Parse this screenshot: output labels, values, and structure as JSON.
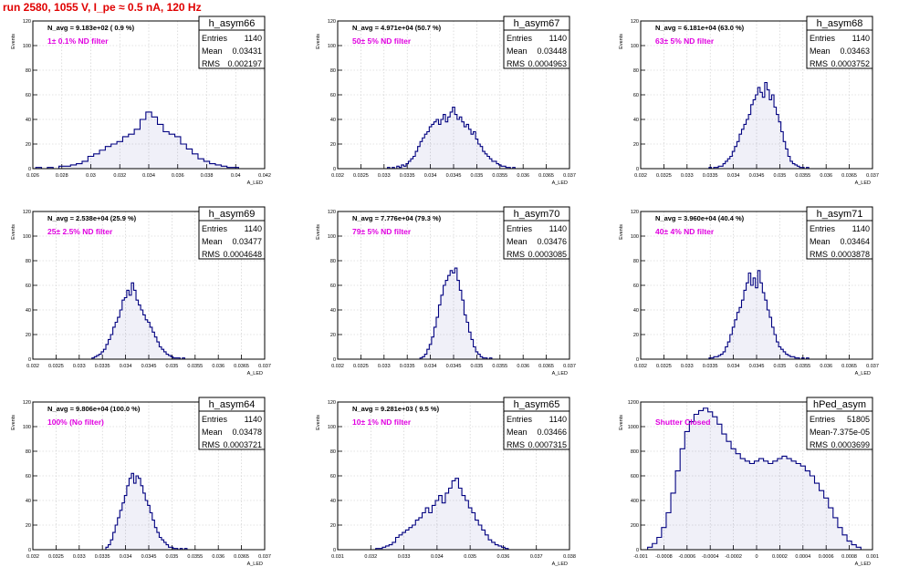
{
  "title": "run 2580,  1055 V, I_pe ≈ 0.5 nA, 120 Hz",
  "stats_labels": {
    "entries": "Entries",
    "mean": "Mean",
    "rms": "RMS"
  },
  "colors": {
    "histogram": "#000080",
    "title": "#e00000",
    "annotation": "#e000e0"
  },
  "chart_data": [
    {
      "type": "bar",
      "name": "h_asym66",
      "ylabel": "Events",
      "xlabel": "A_LED",
      "n_avg": "N_avg = 9.183e+02 ( 0.9 %)",
      "filter": "1± 0.1% ND filter",
      "entries": "1140",
      "mean": "0.03431",
      "rms": "0.002197",
      "xlim": [
        0.026,
        0.042
      ],
      "ylim": [
        0,
        120
      ],
      "xticks": [
        "0.026",
        "0.028",
        "0.03",
        "0.032",
        "0.034",
        "0.036",
        "0.038",
        "0.04",
        "0.042"
      ],
      "yticks": [
        "0",
        "20",
        "40",
        "60",
        "80",
        "100",
        "120"
      ],
      "grid": true,
      "x": [
        0.0264,
        0.0268,
        0.0272,
        0.0276,
        0.028,
        0.0284,
        0.0288,
        0.0292,
        0.0296,
        0.03,
        0.0304,
        0.0308,
        0.0312,
        0.0316,
        0.032,
        0.0324,
        0.0328,
        0.0332,
        0.0336,
        0.034,
        0.0344,
        0.0348,
        0.0352,
        0.0356,
        0.036,
        0.0364,
        0.0368,
        0.0372,
        0.0376,
        0.038,
        0.0384,
        0.0388,
        0.0392,
        0.0396,
        0.04
      ],
      "values": [
        1,
        0,
        1,
        0,
        2,
        2,
        3,
        4,
        6,
        10,
        12,
        15,
        18,
        20,
        22,
        26,
        28,
        32,
        40,
        46,
        42,
        36,
        30,
        28,
        26,
        20,
        16,
        12,
        8,
        6,
        4,
        3,
        2,
        1,
        1
      ]
    },
    {
      "type": "bar",
      "name": "h_asym67",
      "ylabel": "Events",
      "xlabel": "A_LED",
      "n_avg": "N_avg = 4.971e+04 (50.7 %)",
      "filter": "50± 5% ND filter",
      "entries": "1140",
      "mean": "0.03448",
      "rms": "0.0004963",
      "xlim": [
        0.032,
        0.037
      ],
      "ylim": [
        0,
        120
      ],
      "xticks": [
        "0.032",
        "0.0325",
        "0.033",
        "0.0335",
        "0.034",
        "0.0345",
        "0.035",
        "0.0355",
        "0.036",
        "0.0365",
        "0.037"
      ],
      "yticks": [
        "0",
        "20",
        "40",
        "60",
        "80",
        "100",
        "120"
      ],
      "grid": true,
      "x": [
        0.0331,
        0.03315,
        0.0332,
        0.03325,
        0.0333,
        0.03335,
        0.0334,
        0.03345,
        0.0335,
        0.03355,
        0.0336,
        0.03365,
        0.0337,
        0.03375,
        0.0338,
        0.03385,
        0.0339,
        0.03395,
        0.034,
        0.03405,
        0.0341,
        0.03415,
        0.0342,
        0.03425,
        0.0343,
        0.03435,
        0.0344,
        0.03445,
        0.0345,
        0.03455,
        0.0346,
        0.03465,
        0.0347,
        0.03475,
        0.0348,
        0.03485,
        0.0349,
        0.03495,
        0.035,
        0.03505,
        0.0351,
        0.03515,
        0.0352,
        0.03525,
        0.0353,
        0.03535,
        0.0354,
        0.03545,
        0.0355,
        0.03555,
        0.0356,
        0.03565,
        0.0357,
        0.03575,
        0.0358
      ],
      "values": [
        1,
        0,
        1,
        0,
        2,
        1,
        3,
        2,
        4,
        6,
        8,
        10,
        14,
        18,
        22,
        25,
        28,
        30,
        34,
        36,
        38,
        40,
        36,
        40,
        44,
        38,
        42,
        46,
        50,
        44,
        40,
        42,
        38,
        34,
        36,
        32,
        28,
        30,
        24,
        20,
        18,
        14,
        12,
        10,
        8,
        6,
        6,
        4,
        3,
        2,
        2,
        1,
        1,
        0,
        1
      ]
    },
    {
      "type": "bar",
      "name": "h_asym68",
      "ylabel": "Events",
      "xlabel": "A_LED",
      "n_avg": "N_avg = 6.181e+04 (63.0 %)",
      "filter": "63± 5% ND filter",
      "entries": "1140",
      "mean": "0.03463",
      "rms": "0.0003752",
      "xlim": [
        0.032,
        0.037
      ],
      "ylim": [
        0,
        120
      ],
      "xticks": [
        "0.032",
        "0.0325",
        "0.033",
        "0.0335",
        "0.034",
        "0.0345",
        "0.035",
        "0.0355",
        "0.036",
        "0.0365",
        "0.037"
      ],
      "yticks": [
        "0",
        "20",
        "40",
        "60",
        "80",
        "100",
        "120"
      ],
      "grid": true,
      "x": [
        0.0335,
        0.03355,
        0.0336,
        0.03365,
        0.0337,
        0.03375,
        0.0338,
        0.03385,
        0.0339,
        0.03395,
        0.034,
        0.03405,
        0.0341,
        0.03415,
        0.0342,
        0.03425,
        0.0343,
        0.03435,
        0.0344,
        0.03445,
        0.0345,
        0.03455,
        0.0346,
        0.03465,
        0.0347,
        0.03475,
        0.0348,
        0.03485,
        0.0349,
        0.03495,
        0.035,
        0.03505,
        0.0351,
        0.03515,
        0.0352,
        0.03525,
        0.0353,
        0.03535,
        0.0354,
        0.03545,
        0.0355,
        0.03555,
        0.0356
      ],
      "values": [
        1,
        0,
        1,
        1,
        2,
        2,
        4,
        6,
        8,
        10,
        14,
        18,
        22,
        28,
        32,
        36,
        40,
        44,
        52,
        56,
        60,
        66,
        62,
        58,
        70,
        64,
        56,
        60,
        50,
        44,
        38,
        30,
        22,
        16,
        10,
        6,
        4,
        3,
        2,
        1,
        1,
        0,
        1
      ]
    },
    {
      "type": "bar",
      "name": "h_asym69",
      "ylabel": "Events",
      "xlabel": "A_LED",
      "n_avg": "N_avg = 2.538e+04 (25.9 %)",
      "filter": "25± 2.5% ND filter",
      "entries": "1140",
      "mean": "0.03477",
      "rms": "0.0004648",
      "xlim": [
        0.032,
        0.037
      ],
      "ylim": [
        0,
        120
      ],
      "xticks": [
        "0.032",
        "0.0325",
        "0.033",
        "0.0335",
        "0.034",
        "0.0345",
        "0.035",
        "0.0355",
        "0.036",
        "0.0365",
        "0.037"
      ],
      "yticks": [
        "0",
        "20",
        "40",
        "60",
        "80",
        "100",
        "120"
      ],
      "grid": true,
      "x": [
        0.0333,
        0.03335,
        0.0334,
        0.03345,
        0.0335,
        0.03355,
        0.0336,
        0.03365,
        0.0337,
        0.03375,
        0.0338,
        0.03385,
        0.0339,
        0.03395,
        0.034,
        0.03405,
        0.0341,
        0.03415,
        0.0342,
        0.03425,
        0.0343,
        0.03435,
        0.0344,
        0.03445,
        0.0345,
        0.03455,
        0.0346,
        0.03465,
        0.0347,
        0.03475,
        0.0348,
        0.03485,
        0.0349,
        0.03495,
        0.035,
        0.03505,
        0.0351,
        0.03515,
        0.0352,
        0.03525,
        0.0353
      ],
      "values": [
        1,
        2,
        3,
        4,
        6,
        8,
        12,
        16,
        20,
        26,
        30,
        34,
        40,
        48,
        50,
        56,
        52,
        62,
        56,
        48,
        44,
        40,
        36,
        32,
        30,
        26,
        22,
        18,
        14,
        10,
        8,
        6,
        4,
        3,
        2,
        1,
        1,
        1,
        0,
        1,
        0
      ]
    },
    {
      "type": "bar",
      "name": "h_asym70",
      "ylabel": "Events",
      "xlabel": "A_LED",
      "n_avg": "N_avg = 7.776e+04 (79.3 %)",
      "filter": "79± 5% ND filter",
      "entries": "1140",
      "mean": "0.03476",
      "rms": "0.0003085",
      "xlim": [
        0.032,
        0.037
      ],
      "ylim": [
        0,
        120
      ],
      "xticks": [
        "0.032",
        "0.0325",
        "0.033",
        "0.0335",
        "0.034",
        "0.0345",
        "0.035",
        "0.0355",
        "0.036",
        "0.0365",
        "0.037"
      ],
      "yticks": [
        "0",
        "20",
        "40",
        "60",
        "80",
        "100",
        "120"
      ],
      "grid": true,
      "x": [
        0.0338,
        0.03385,
        0.0339,
        0.03395,
        0.034,
        0.03405,
        0.0341,
        0.03415,
        0.0342,
        0.03425,
        0.0343,
        0.03435,
        0.0344,
        0.03445,
        0.0345,
        0.03455,
        0.0346,
        0.03465,
        0.0347,
        0.03475,
        0.0348,
        0.03485,
        0.0349,
        0.03495,
        0.035,
        0.03505,
        0.0351,
        0.03515,
        0.0352,
        0.03525,
        0.0353
      ],
      "values": [
        1,
        2,
        4,
        8,
        12,
        18,
        26,
        34,
        44,
        52,
        60,
        64,
        68,
        72,
        70,
        74,
        64,
        56,
        48,
        36,
        30,
        22,
        16,
        10,
        6,
        4,
        2,
        1,
        1,
        0,
        1
      ]
    },
    {
      "type": "bar",
      "name": "h_asym71",
      "ylabel": "Events",
      "xlabel": "A_LED",
      "n_avg": "N_avg = 3.960e+04 (40.4 %)",
      "filter": "40± 4% ND filter",
      "entries": "1140",
      "mean": "0.03464",
      "rms": "0.0003878",
      "xlim": [
        0.032,
        0.037
      ],
      "ylim": [
        0,
        120
      ],
      "xticks": [
        "0.032",
        "0.0325",
        "0.033",
        "0.0335",
        "0.034",
        "0.0345",
        "0.035",
        "0.0355",
        "0.036",
        "0.0365",
        "0.037"
      ],
      "yticks": [
        "0",
        "20",
        "40",
        "60",
        "80",
        "100",
        "120"
      ],
      "grid": true,
      "x": [
        0.0335,
        0.03355,
        0.0336,
        0.03365,
        0.0337,
        0.03375,
        0.0338,
        0.03385,
        0.0339,
        0.03395,
        0.034,
        0.03405,
        0.0341,
        0.03415,
        0.0342,
        0.03425,
        0.0343,
        0.03435,
        0.0344,
        0.03445,
        0.0345,
        0.03455,
        0.0346,
        0.03465,
        0.0347,
        0.03475,
        0.0348,
        0.03485,
        0.0349,
        0.03495,
        0.035,
        0.03505,
        0.0351,
        0.03515,
        0.0352,
        0.03525,
        0.0353,
        0.03535,
        0.0354,
        0.03545,
        0.0355,
        0.03555,
        0.0356
      ],
      "values": [
        1,
        1,
        2,
        2,
        3,
        4,
        6,
        10,
        14,
        20,
        26,
        32,
        38,
        42,
        48,
        56,
        62,
        70,
        60,
        66,
        58,
        72,
        62,
        54,
        48,
        40,
        34,
        26,
        20,
        14,
        10,
        8,
        6,
        4,
        3,
        2,
        2,
        1,
        1,
        0,
        1,
        0,
        1
      ]
    },
    {
      "type": "bar",
      "name": "h_asym64",
      "ylabel": "Events",
      "xlabel": "A_LED",
      "n_avg": "N_avg = 9.806e+04 (100.0 %)",
      "filter": "100% (No filter)",
      "entries": "1140",
      "mean": "0.03478",
      "rms": "0.0003721",
      "xlim": [
        0.032,
        0.037
      ],
      "ylim": [
        0,
        120
      ],
      "xticks": [
        "0.032",
        "0.0325",
        "0.033",
        "0.0335",
        "0.034",
        "0.0345",
        "0.035",
        "0.0355",
        "0.036",
        "0.0365",
        "0.037"
      ],
      "yticks": [
        "0",
        "20",
        "40",
        "60",
        "80",
        "100",
        "120"
      ],
      "grid": true,
      "x": [
        0.0336,
        0.03365,
        0.0337,
        0.03375,
        0.0338,
        0.03385,
        0.0339,
        0.03395,
        0.034,
        0.03405,
        0.0341,
        0.03415,
        0.0342,
        0.03425,
        0.0343,
        0.03435,
        0.0344,
        0.03445,
        0.0345,
        0.03455,
        0.0346,
        0.03465,
        0.0347,
        0.03475,
        0.0348,
        0.03485,
        0.0349,
        0.03495,
        0.035,
        0.03505,
        0.0351,
        0.03515,
        0.0352,
        0.03525,
        0.0353
      ],
      "values": [
        2,
        4,
        8,
        14,
        20,
        26,
        32,
        38,
        44,
        52,
        58,
        62,
        54,
        60,
        58,
        52,
        46,
        40,
        36,
        30,
        24,
        18,
        14,
        10,
        8,
        6,
        4,
        2,
        2,
        1,
        1,
        0,
        1,
        0,
        1
      ]
    },
    {
      "type": "bar",
      "name": "h_asym65",
      "ylabel": "Events",
      "xlabel": "A_LED",
      "n_avg": "N_avg = 9.281e+03 ( 9.5 %)",
      "filter": "10± 1% ND filter",
      "entries": "1140",
      "mean": "0.03466",
      "rms": "0.0007315",
      "xlim": [
        0.031,
        0.038
      ],
      "ylim": [
        0,
        120
      ],
      "xticks": [
        "0.031",
        "0.032",
        "0.033",
        "0.034",
        "0.035",
        "0.036",
        "0.037",
        "0.038"
      ],
      "yticks": [
        "0",
        "20",
        "40",
        "60",
        "80",
        "100",
        "120"
      ],
      "grid": true,
      "x": [
        0.0322,
        0.0323,
        0.0324,
        0.0325,
        0.0326,
        0.0327,
        0.0328,
        0.0329,
        0.033,
        0.0331,
        0.0332,
        0.0333,
        0.0334,
        0.0335,
        0.0336,
        0.0337,
        0.0338,
        0.0339,
        0.034,
        0.0341,
        0.0342,
        0.0343,
        0.0344,
        0.0345,
        0.0346,
        0.0347,
        0.0348,
        0.0349,
        0.035,
        0.0351,
        0.0352,
        0.0353,
        0.0354,
        0.0355,
        0.0356,
        0.0357,
        0.0358,
        0.0359,
        0.036,
        0.0361
      ],
      "values": [
        1,
        1,
        2,
        3,
        4,
        6,
        10,
        12,
        14,
        16,
        18,
        20,
        24,
        26,
        30,
        34,
        30,
        36,
        40,
        44,
        38,
        46,
        50,
        56,
        58,
        50,
        44,
        40,
        34,
        30,
        24,
        20,
        16,
        12,
        8,
        6,
        4,
        3,
        2,
        1
      ]
    },
    {
      "type": "bar",
      "name": "hPed_asym",
      "ylabel": "Events",
      "xlabel": "A_LED",
      "n_avg": "",
      "filter": "Shutter Closed",
      "entries": "51805",
      "mean": "-7.375e-05",
      "rms": "0.0003699",
      "xlim": [
        -0.001,
        0.001
      ],
      "ylim": [
        0,
        1200
      ],
      "xticks": [
        "-0.001",
        "-0.0008",
        "-0.0006",
        "-0.0004",
        "-0.0002",
        "0",
        "0.0002",
        "0.0004",
        "0.0006",
        "0.0008",
        "0.001"
      ],
      "yticks": [
        "0",
        "200",
        "400",
        "600",
        "800",
        "1000",
        "1200"
      ],
      "grid": true,
      "x": [
        -0.00092,
        -0.00088,
        -0.00084,
        -0.0008,
        -0.00076,
        -0.00072,
        -0.00068,
        -0.00064,
        -0.0006,
        -0.00056,
        -0.00052,
        -0.00048,
        -0.00044,
        -0.0004,
        -0.00036,
        -0.00032,
        -0.00028,
        -0.00024,
        -0.0002,
        -0.00016,
        -0.00012,
        -8e-05,
        -4e-05,
        0,
        4e-05,
        8e-05,
        0.00012,
        0.00016,
        0.0002,
        0.00024,
        0.00028,
        0.00032,
        0.00036,
        0.0004,
        0.00044,
        0.00048,
        0.00052,
        0.00056,
        0.0006,
        0.00064,
        0.00068,
        0.00072,
        0.00076,
        0.0008,
        0.00084,
        0.00088
      ],
      "values": [
        20,
        50,
        100,
        180,
        300,
        460,
        640,
        820,
        960,
        1040,
        1100,
        1130,
        1150,
        1120,
        1080,
        1020,
        940,
        880,
        820,
        780,
        740,
        720,
        700,
        720,
        740,
        720,
        700,
        720,
        740,
        760,
        740,
        720,
        700,
        680,
        640,
        600,
        540,
        480,
        420,
        340,
        260,
        180,
        120,
        70,
        40,
        20
      ]
    }
  ]
}
